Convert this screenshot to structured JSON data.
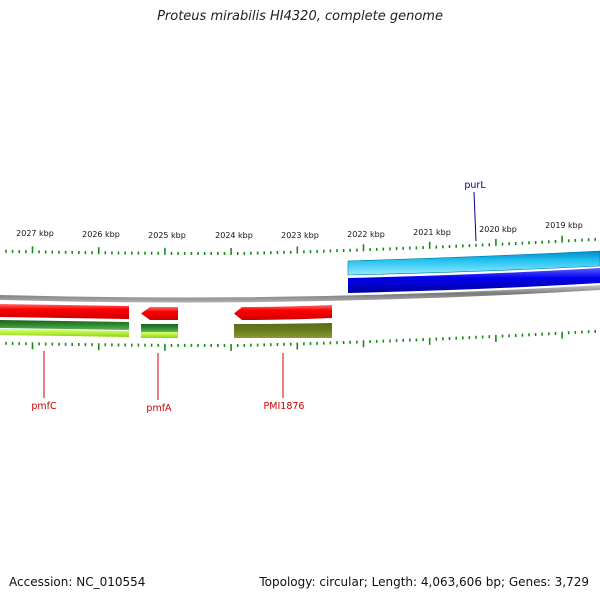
{
  "title": "Proteus mirabilis HI4320, complete genome",
  "footer": {
    "accession": "Accession: NC_010554",
    "summary": "Topology: circular; Length: 4,063,606 bp; Genes: 3,729"
  },
  "scale": {
    "labels": [
      "2027 kbp",
      "2026 kbp",
      "2025 kbp",
      "2024 kbp",
      "2023 kbp",
      "2022 kbp",
      "2021 kbp",
      "2020 kbp",
      "2019 kbp"
    ],
    "tick_color": "#1a8a1a"
  },
  "genes": [
    {
      "name": "pmfC",
      "color": "#cc0000"
    },
    {
      "name": "pmfA",
      "color": "#cc0000"
    },
    {
      "name": "PMI1876",
      "color": "#cc0000"
    },
    {
      "name": "purL",
      "color": "#00008b"
    }
  ],
  "colors": {
    "forward_cds": "#ff0000",
    "reverse_cds": "#0000ee",
    "rna_light_blue": "#22c4f0",
    "cog_green": "#2e7d2e",
    "cog_lime": "#b5f03c",
    "cog_olive": "#6b7c1c",
    "backbone": "#8a8a8a"
  }
}
